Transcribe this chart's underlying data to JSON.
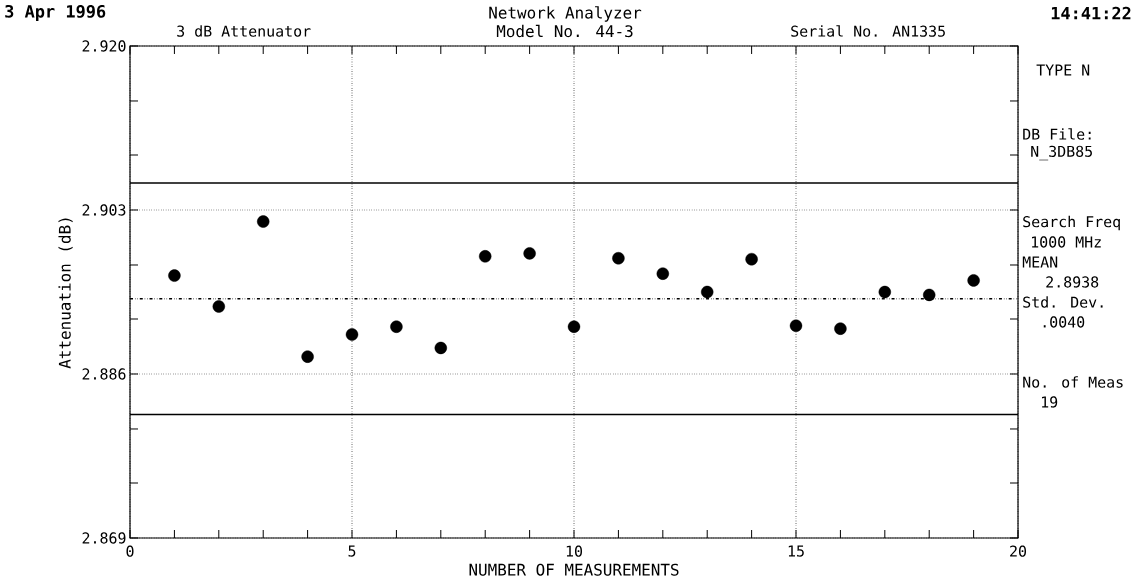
{
  "chart_data": {
    "type": "scatter",
    "title": "Network Analyzer",
    "subtitle": "Model No. 44-3",
    "xlabel": "NUMBER OF MEASUREMENTS",
    "ylabel": "Attenuation (dB)",
    "x": [
      1,
      2,
      3,
      4,
      5,
      6,
      7,
      8,
      9,
      10,
      11,
      12,
      13,
      14,
      15,
      16,
      17,
      18,
      19
    ],
    "series": [
      {
        "color": "#000000",
        "values": [
          2.8962,
          2.893,
          2.9018,
          2.8878,
          2.8901,
          2.8909,
          2.8887,
          2.8982,
          2.8985,
          2.8909,
          2.898,
          2.8964,
          2.8945,
          2.8979,
          2.891,
          2.8907,
          2.8945,
          2.8942,
          2.8957
        ]
      }
    ],
    "marker": "circle",
    "xlim": [
      0,
      20
    ],
    "xticks": [
      0,
      {
        "value": 1,
        "label": null
      },
      {
        "value": 2,
        "label": null
      },
      {
        "value": 3,
        "label": null
      },
      {
        "value": 4,
        "label": null
      },
      5,
      {
        "value": 6,
        "label": null
      },
      {
        "value": 7,
        "label": null
      },
      {
        "value": 8,
        "label": null
      },
      {
        "value": 9,
        "label": null
      },
      10,
      {
        "value": 11,
        "label": null
      },
      {
        "value": 12,
        "label": null
      },
      {
        "value": 13,
        "label": null
      },
      {
        "value": 14,
        "label": null
      },
      15,
      {
        "value": 16,
        "label": null
      },
      {
        "value": 17,
        "label": null
      },
      {
        "value": 18,
        "label": null
      },
      {
        "value": 19,
        "label": null
      },
      20
    ],
    "ylim": [
      2.869,
      2.92
    ],
    "yticks": [
      {
        "value": 2.869,
        "label": "2.869"
      },
      {
        "value": 2.8747,
        "label": null
      },
      {
        "value": 2.8803,
        "label": null
      },
      {
        "value": 2.886,
        "label": "2.886"
      },
      {
        "value": 2.8917,
        "label": null
      },
      {
        "value": 2.8973,
        "label": null
      },
      {
        "value": 2.903,
        "label": "2.903"
      },
      {
        "value": 2.9087,
        "label": null
      },
      {
        "value": 2.9143,
        "label": null
      },
      {
        "value": 2.92,
        "label": "2.920"
      }
    ],
    "grid": true,
    "ref_lines": [
      {
        "axis": "y",
        "value": 2.9058,
        "color": "#000000",
        "line_style": "solid"
      },
      {
        "axis": "y",
        "value": 2.8938,
        "color": "#000000",
        "line_style": "dashdot"
      },
      {
        "axis": "y",
        "value": 2.8818,
        "color": "#000000",
        "line_style": "solid"
      }
    ],
    "annotations": [
      "3 Apr 1996",
      "14:41:22",
      "3 dB Attenuator",
      "Serial No. AN1335",
      "TYPE N",
      "DB File:",
      "N_3DB85",
      "Search Freq",
      "1000 MHz",
      "MEAN",
      "2.8938",
      "Std. Dev.",
      ".0040",
      "No. of Meas",
      "19"
    ]
  }
}
